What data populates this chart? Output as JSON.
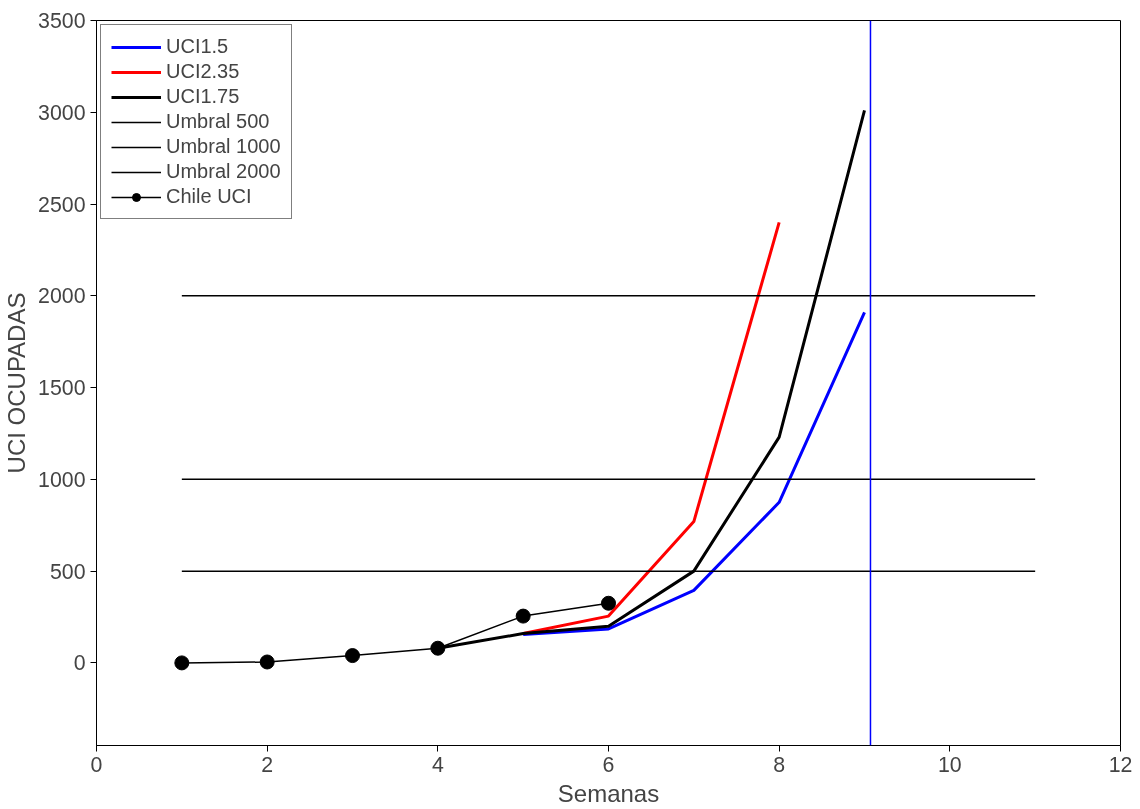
{
  "chart_data": {
    "type": "line",
    "xlabel": "Semanas",
    "ylabel": "UCI OCUPADAS",
    "xlim": [
      0,
      12
    ],
    "ylim": [
      -450,
      3500
    ],
    "xticks": [
      0,
      2,
      4,
      6,
      8,
      10,
      12
    ],
    "yticks": [
      0,
      500,
      1000,
      1500,
      2000,
      2500,
      3000,
      3500
    ],
    "grid": false,
    "legend": "top left",
    "marker": "none",
    "line_style": "solid",
    "series": [
      {
        "name": "UCI1.5",
        "color": "#0000ff",
        "x": [
          5,
          6,
          7,
          8,
          9
        ],
        "values": [
          155,
          185,
          395,
          875,
          1910
        ]
      },
      {
        "name": "UCI2.35",
        "color": "#ff0000",
        "x": [
          5,
          6,
          7,
          8
        ],
        "values": [
          160,
          255,
          770,
          2400
        ]
      },
      {
        "name": "UCI1.75",
        "color": "#000000",
        "x": [
          4,
          5,
          6,
          7,
          8,
          9
        ],
        "values": [
          80,
          160,
          200,
          500,
          1230,
          3010
        ]
      },
      {
        "name": "Umbral 500",
        "color": "#000000",
        "x": [
          1,
          11
        ],
        "values": [
          500,
          500
        ]
      },
      {
        "name": "Umbral 1000",
        "color": "#000000",
        "x": [
          1,
          11
        ],
        "values": [
          1000,
          1000
        ]
      },
      {
        "name": "Umbral 2000",
        "color": "#000000",
        "x": [
          1,
          11
        ],
        "values": [
          2000,
          2000
        ]
      },
      {
        "name": "Chile UCI",
        "color": "#000000",
        "marker": "circle",
        "x": [
          1,
          2,
          3,
          4,
          5,
          6
        ],
        "values": [
          0,
          5,
          40,
          80,
          255,
          325
        ]
      }
    ],
    "ref_lines": [
      {
        "axis": "x",
        "value": 9.07,
        "color": "#0000ff"
      }
    ]
  }
}
